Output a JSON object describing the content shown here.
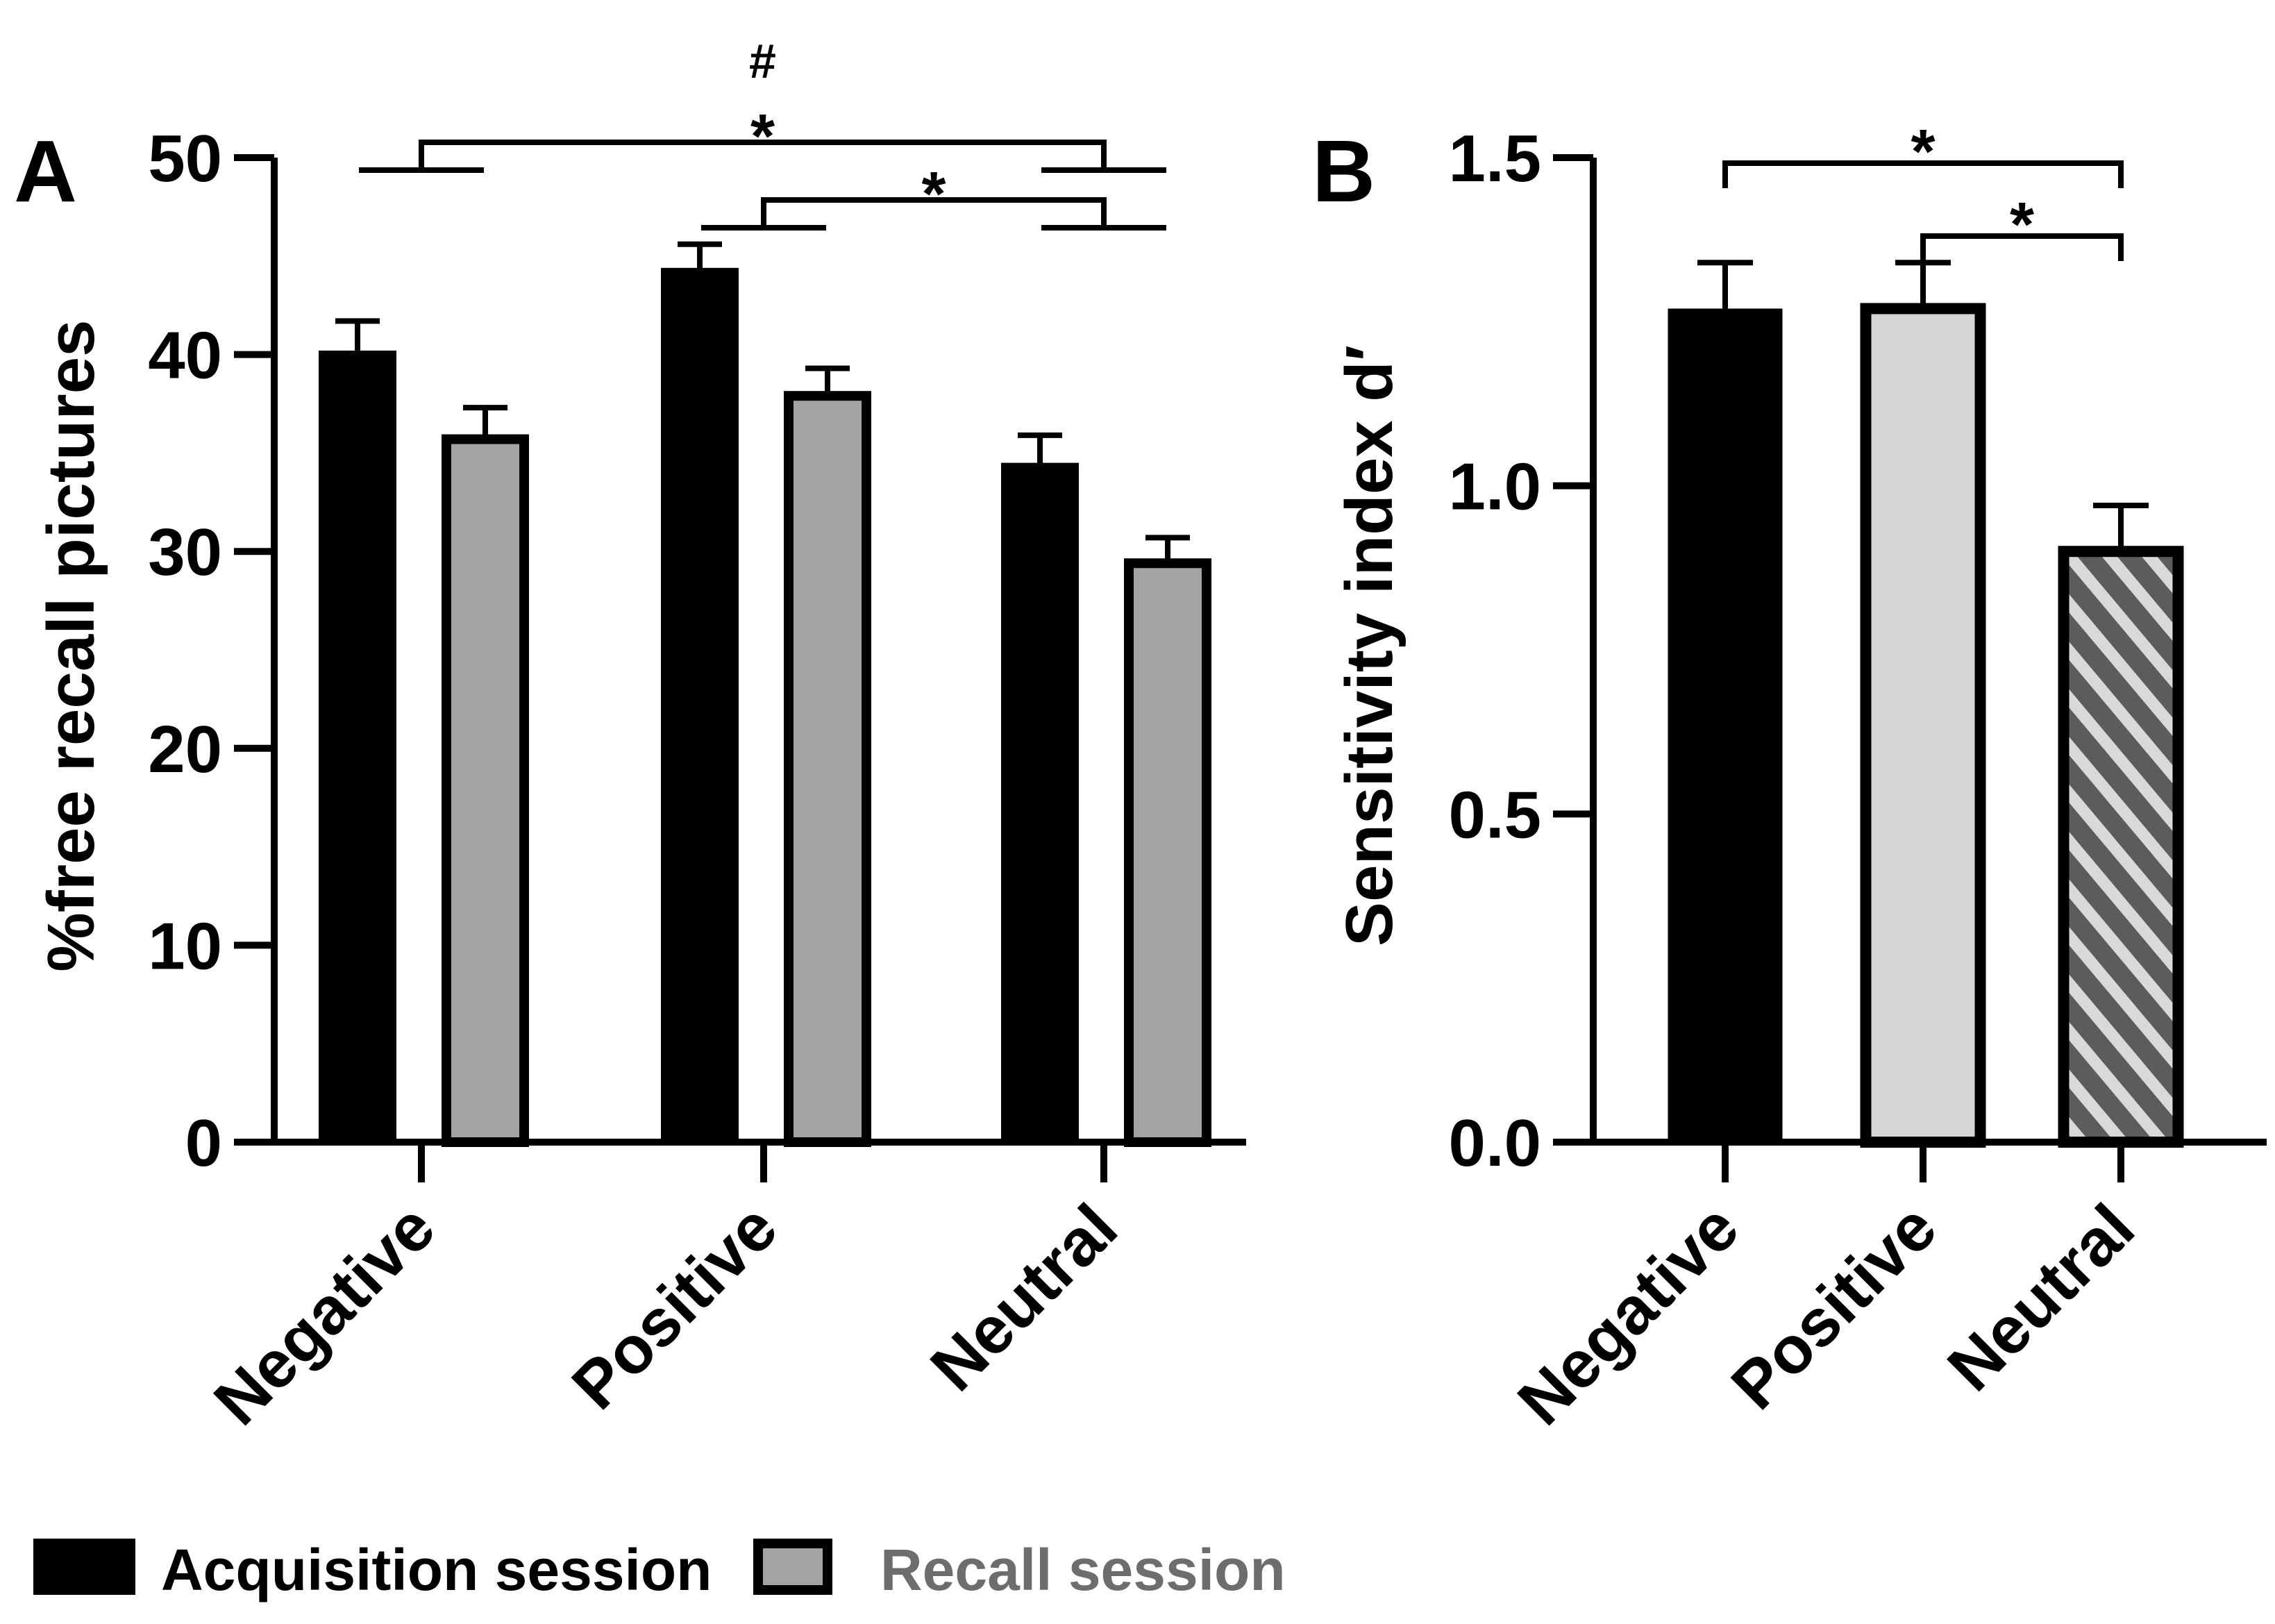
{
  "chart_data": [
    {
      "panel_label": "A",
      "type": "bar",
      "categories": [
        "Negative",
        "Positive",
        "Neutral"
      ],
      "series": [
        {
          "name": "Acquisition session",
          "values": [
            40.2,
            44.4,
            34.5
          ],
          "errors": [
            1.5,
            1.2,
            1.4
          ],
          "color": "#000000"
        },
        {
          "name": "Recall session",
          "values": [
            35.7,
            37.9,
            29.4
          ],
          "errors": [
            1.6,
            1.4,
            1.3
          ],
          "color": "#a3a3a4"
        }
      ],
      "ylabel": "%free recall pictures",
      "xlabel": "",
      "ylim": [
        0,
        50
      ],
      "yticks": [
        "0",
        "10",
        "20",
        "30",
        "40",
        "50"
      ],
      "significance": [
        {
          "from": "Negative",
          "to": "Neutral",
          "marks": [
            "#",
            "*"
          ]
        },
        {
          "from": "Positive",
          "to": "Neutral",
          "marks": [
            "*"
          ]
        }
      ]
    },
    {
      "panel_label": "B",
      "type": "bar",
      "categories": [
        "Negative",
        "Positive",
        "Neutral"
      ],
      "values": [
        1.27,
        1.27,
        0.9
      ],
      "errors": [
        0.07,
        0.07,
        0.07
      ],
      "fills": [
        "#000000",
        "#d6d6d6",
        "hatched"
      ],
      "ylabel": "Sensitivity index d′",
      "xlabel": "",
      "ylim": [
        0,
        1.5
      ],
      "yticks": [
        "0.0",
        "0.5",
        "1.0",
        "1.5"
      ],
      "significance": [
        {
          "from": "Negative",
          "to": "Neutral",
          "marks": [
            "*"
          ]
        },
        {
          "from": "Positive",
          "to": "Neutral",
          "marks": [
            "*"
          ]
        }
      ]
    }
  ],
  "legend": [
    {
      "label": "Acquisition session",
      "color": "#000000",
      "text_color": "#000000"
    },
    {
      "label": "Recall session",
      "color": "#a3a3a4",
      "text_color": "#6d6d6d"
    }
  ]
}
